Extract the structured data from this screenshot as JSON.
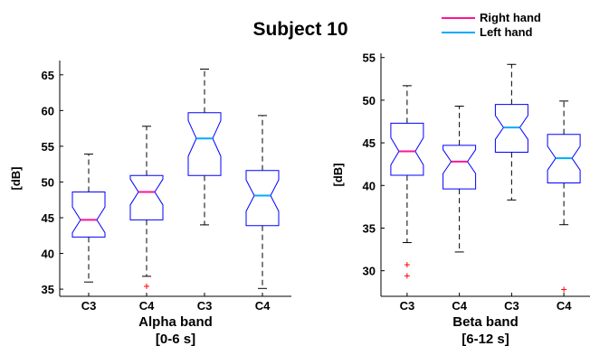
{
  "title": "Subject 10",
  "legend": [
    {
      "label": "Right hand",
      "color": "#ff1493"
    },
    {
      "label": "Left hand",
      "color": "#00aaff"
    }
  ],
  "colors": {
    "box": "#0000ff",
    "whisker": "#000000",
    "outlier": "#ff0000"
  },
  "chart_data": [
    {
      "type": "box",
      "ylabel": "[dB]",
      "xlabel": "Alpha band",
      "xlabel2": "[0-6 s]",
      "ylim": [
        34,
        67
      ],
      "yticks": [
        35,
        40,
        45,
        50,
        55,
        60,
        65
      ],
      "categories": [
        "C3",
        "C4",
        "C3",
        "C4"
      ],
      "groups": [
        "Right hand",
        "Right hand",
        "Left hand",
        "Left hand"
      ],
      "boxes": [
        {
          "min": 36.0,
          "q1": 42.3,
          "median": 44.7,
          "q3": 48.6,
          "max": 53.9,
          "notch_lo": 42.9,
          "notch_hi": 46.5,
          "outliers": []
        },
        {
          "min": 36.8,
          "q1": 44.7,
          "median": 48.6,
          "q3": 50.9,
          "max": 57.8,
          "notch_lo": 46.8,
          "notch_hi": 50.4,
          "outliers": [
            35.4
          ]
        },
        {
          "min": 44.0,
          "q1": 50.9,
          "median": 56.1,
          "q3": 59.7,
          "max": 65.8,
          "notch_lo": 53.6,
          "notch_hi": 58.6,
          "outliers": []
        },
        {
          "min": 35.1,
          "q1": 43.9,
          "median": 48.1,
          "q3": 51.6,
          "max": 59.3,
          "notch_lo": 45.9,
          "notch_hi": 50.3,
          "outliers": []
        }
      ]
    },
    {
      "type": "box",
      "ylabel": "[dB]",
      "xlabel": "Beta band",
      "xlabel2": "[6-12 s]",
      "ylim": [
        27,
        55.5
      ],
      "yticks": [
        30,
        35,
        40,
        45,
        50,
        55
      ],
      "categories": [
        "C3",
        "C4",
        "C3",
        "C4"
      ],
      "groups": [
        "Right hand",
        "Right hand",
        "Left hand",
        "Left hand"
      ],
      "boxes": [
        {
          "min": 33.3,
          "q1": 41.2,
          "median": 44.0,
          "q3": 47.3,
          "max": 51.7,
          "notch_lo": 42.4,
          "notch_hi": 45.6,
          "outliers": [
            30.7,
            29.4
          ]
        },
        {
          "min": 32.2,
          "q1": 39.6,
          "median": 42.8,
          "q3": 44.7,
          "max": 49.3,
          "notch_lo": 41.4,
          "notch_hi": 44.2,
          "outliers": []
        },
        {
          "min": 38.3,
          "q1": 43.9,
          "median": 46.8,
          "q3": 49.5,
          "max": 54.2,
          "notch_lo": 45.4,
          "notch_hi": 48.2,
          "outliers": []
        },
        {
          "min": 35.4,
          "q1": 40.3,
          "median": 43.2,
          "q3": 46.0,
          "max": 49.9,
          "notch_lo": 41.8,
          "notch_hi": 44.6,
          "outliers": [
            27.8
          ]
        }
      ]
    }
  ]
}
